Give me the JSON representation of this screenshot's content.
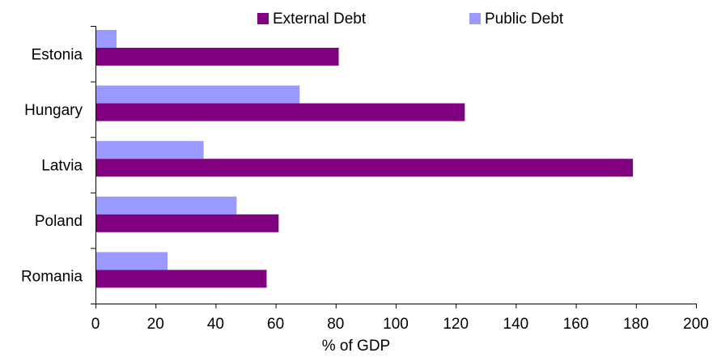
{
  "chart_data": {
    "type": "bar",
    "orientation": "horizontal",
    "categories": [
      "Estonia",
      "Hungary",
      "Latvia",
      "Poland",
      "Romania"
    ],
    "series": [
      {
        "name": "External Debt",
        "color": "#800080",
        "values": [
          81,
          123,
          179,
          61,
          57
        ]
      },
      {
        "name": "Public Debt",
        "color": "#9999ff",
        "values": [
          7,
          68,
          36,
          47,
          24
        ]
      }
    ],
    "xlabel": "% of GDP",
    "ylabel": "",
    "title": "",
    "xlim": [
      0,
      200
    ],
    "xticks": [
      0,
      20,
      40,
      60,
      80,
      100,
      120,
      140,
      160,
      180,
      200
    ],
    "grid": false,
    "legend": "top"
  }
}
